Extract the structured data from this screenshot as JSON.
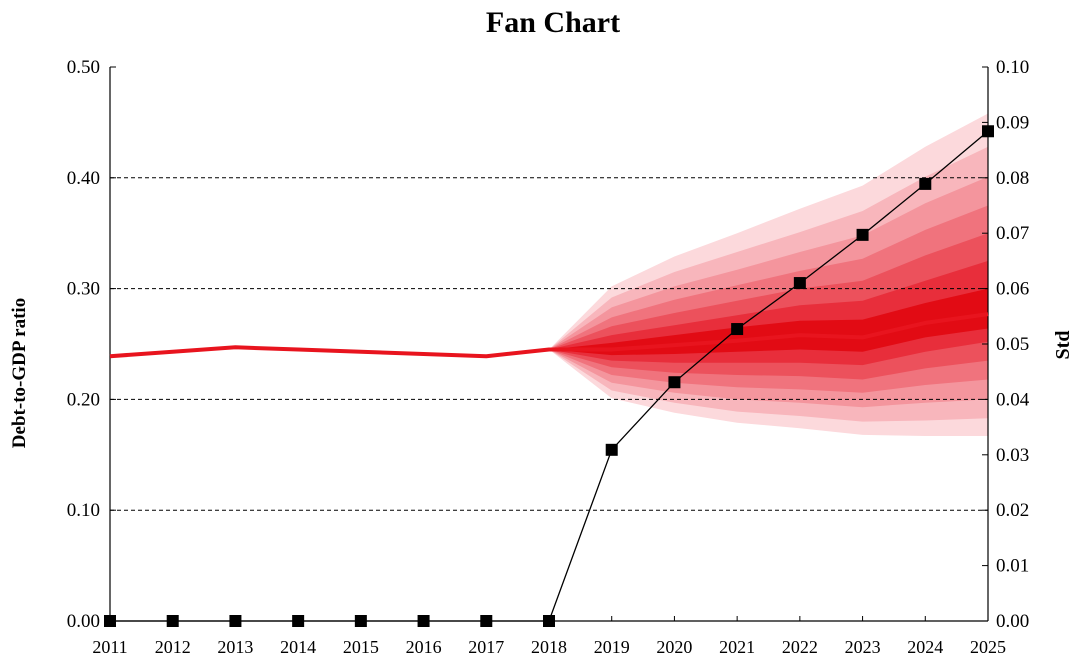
{
  "chart_data": {
    "type": "area",
    "title": "Fan Chart",
    "ylabel": "Debt-to-GDP  ratio",
    "ylabel_right": "Std",
    "x": [
      2011,
      2012,
      2013,
      2014,
      2015,
      2016,
      2017,
      2018,
      2019,
      2020,
      2021,
      2022,
      2023,
      2024,
      2025
    ],
    "x_tick_labels": [
      "2011",
      "2012",
      "2013",
      "2014",
      "2015",
      "2016",
      "2017",
      "2018",
      "2019",
      "2020",
      "2021",
      "2022",
      "2023",
      "2024",
      "2025"
    ],
    "ylim": [
      0,
      0.5
    ],
    "ylim_right": [
      0,
      0.1
    ],
    "y_tick_labels": [
      "0.00",
      "0.10",
      "0.20",
      "0.30",
      "0.40",
      "0.50"
    ],
    "y_tick_values": [
      0,
      0.1,
      0.2,
      0.3,
      0.4,
      0.5
    ],
    "y_right_tick_labels": [
      "0.00",
      "0.01",
      "0.02",
      "0.03",
      "0.04",
      "0.05",
      "0.06",
      "0.07",
      "0.08",
      "0.09",
      "0.10"
    ],
    "y_right_tick_values": [
      0,
      0.01,
      0.02,
      0.03,
      0.04,
      0.05,
      0.06,
      0.07,
      0.08,
      0.09,
      0.1
    ],
    "grid": "horizontal dashed at 0.10, 0.20, 0.30, 0.40",
    "series": [
      {
        "role": "median",
        "axis": "left",
        "color": "#e8141e",
        "values": [
          0.239,
          0.243,
          0.247,
          0.245,
          0.243,
          0.241,
          0.239,
          0.245,
          0.245,
          0.249,
          0.253,
          0.258,
          0.256,
          0.269,
          0.277
        ]
      },
      {
        "role": "std",
        "axis": "right",
        "color": "#000000",
        "marker": "square",
        "values": [
          0,
          0,
          0,
          0,
          0,
          0,
          0,
          0,
          0.0309,
          0.0431,
          0.0527,
          0.061,
          0.0697,
          0.0789,
          0.0884
        ]
      }
    ],
    "fan": {
      "start_year": 2018,
      "colors": [
        "#fcd9dc",
        "#f8b6bc",
        "#f4959d",
        "#f0737d",
        "#ec515c",
        "#e82e3b",
        "#e20b14"
      ],
      "upper_bands": [
        [
          0.245,
          0.302,
          0.329,
          0.35,
          0.372,
          0.393,
          0.428,
          0.458
        ],
        [
          0.245,
          0.292,
          0.315,
          0.333,
          0.351,
          0.37,
          0.401,
          0.428
        ],
        [
          0.245,
          0.283,
          0.302,
          0.317,
          0.333,
          0.348,
          0.377,
          0.401
        ],
        [
          0.245,
          0.274,
          0.29,
          0.303,
          0.316,
          0.327,
          0.353,
          0.375
        ],
        [
          0.245,
          0.266,
          0.278,
          0.289,
          0.3,
          0.307,
          0.33,
          0.35
        ],
        [
          0.245,
          0.258,
          0.267,
          0.276,
          0.285,
          0.289,
          0.307,
          0.325
        ],
        [
          0.245,
          0.251,
          0.258,
          0.265,
          0.271,
          0.272,
          0.287,
          0.3
        ]
      ],
      "lower_bands": [
        [
          0.245,
          0.201,
          0.188,
          0.179,
          0.174,
          0.168,
          0.167,
          0.167
        ],
        [
          0.245,
          0.208,
          0.197,
          0.189,
          0.185,
          0.18,
          0.181,
          0.183
        ],
        [
          0.245,
          0.215,
          0.206,
          0.2,
          0.197,
          0.193,
          0.197,
          0.2
        ],
        [
          0.245,
          0.222,
          0.215,
          0.211,
          0.209,
          0.206,
          0.213,
          0.218
        ],
        [
          0.245,
          0.229,
          0.224,
          0.222,
          0.221,
          0.218,
          0.228,
          0.235
        ],
        [
          0.245,
          0.235,
          0.233,
          0.233,
          0.233,
          0.231,
          0.243,
          0.252
        ],
        [
          0.245,
          0.24,
          0.241,
          0.243,
          0.245,
          0.243,
          0.256,
          0.264
        ]
      ]
    }
  }
}
